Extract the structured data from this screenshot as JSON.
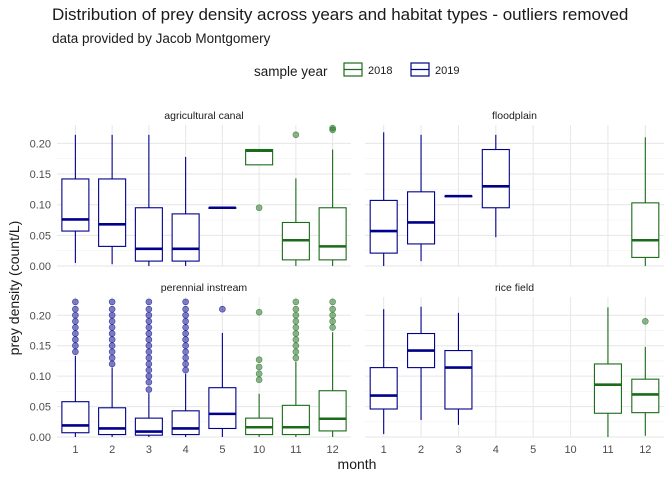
{
  "chart_data": {
    "type": "boxplot",
    "title": "Distribution of prey density across years and habitat types - outliers removed",
    "subtitle": "data provided by Jacob Montgomery",
    "xlabel": "month",
    "ylabel": "prey density (count/L)",
    "ylim": [
      0,
      0.23
    ],
    "yticks": [
      0.0,
      0.05,
      0.1,
      0.15,
      0.2
    ],
    "ytick_labels": [
      "0.00",
      "0.05",
      "0.10",
      "0.15",
      "0.20"
    ],
    "categories": [
      "1",
      "2",
      "3",
      "4",
      "5",
      "10",
      "11",
      "12"
    ],
    "grid": true,
    "legend": {
      "title": "sample year",
      "position": "top",
      "entries": [
        {
          "label": "2018",
          "color": "#1a6b1a"
        },
        {
          "label": "2019",
          "color": "#00008b"
        }
      ]
    },
    "panels": [
      {
        "name": "agricultural canal",
        "boxes": [
          {
            "month": "1",
            "year": "2019",
            "min": 0.005,
            "q1": 0.057,
            "median": 0.076,
            "q3": 0.142,
            "max": 0.214,
            "outliers": []
          },
          {
            "month": "2",
            "year": "2019",
            "min": 0.003,
            "q1": 0.032,
            "median": 0.068,
            "q3": 0.142,
            "max": 0.214,
            "outliers": []
          },
          {
            "month": "3",
            "year": "2019",
            "min": 0.0,
            "q1": 0.008,
            "median": 0.028,
            "q3": 0.095,
            "max": 0.214,
            "outliers": []
          },
          {
            "month": "4",
            "year": "2019",
            "min": 0.0,
            "q1": 0.008,
            "median": 0.028,
            "q3": 0.085,
            "max": 0.178,
            "outliers": []
          },
          {
            "month": "5",
            "year": "2019",
            "min": 0.095,
            "q1": 0.095,
            "median": 0.095,
            "q3": 0.095,
            "max": 0.095,
            "outliers": []
          },
          {
            "month": "10",
            "year": "2018",
            "min": 0.165,
            "q1": 0.165,
            "median": 0.188,
            "q3": 0.19,
            "max": 0.19,
            "outliers": [
              0.095
            ]
          },
          {
            "month": "11",
            "year": "2018",
            "min": 0.0,
            "q1": 0.01,
            "median": 0.042,
            "q3": 0.071,
            "max": 0.143,
            "outliers": [
              0.214
            ]
          },
          {
            "month": "12",
            "year": "2018",
            "min": 0.0,
            "q1": 0.01,
            "median": 0.032,
            "q3": 0.095,
            "max": 0.19,
            "outliers": [
              0.222,
              0.225
            ]
          }
        ]
      },
      {
        "name": "floodplain",
        "boxes": [
          {
            "month": "1",
            "year": "2019",
            "min": 0.0,
            "q1": 0.021,
            "median": 0.057,
            "q3": 0.107,
            "max": 0.218,
            "outliers": []
          },
          {
            "month": "2",
            "year": "2019",
            "min": 0.008,
            "q1": 0.036,
            "median": 0.071,
            "q3": 0.121,
            "max": 0.214,
            "outliers": []
          },
          {
            "month": "3",
            "year": "2019",
            "min": 0.114,
            "q1": 0.114,
            "median": 0.114,
            "q3": 0.114,
            "max": 0.114,
            "outliers": []
          },
          {
            "month": "4",
            "year": "2019",
            "min": 0.047,
            "q1": 0.095,
            "median": 0.13,
            "q3": 0.19,
            "max": 0.214,
            "outliers": []
          },
          {
            "month": "12",
            "year": "2018",
            "min": 0.0,
            "q1": 0.014,
            "median": 0.042,
            "q3": 0.103,
            "max": 0.21,
            "outliers": []
          }
        ]
      },
      {
        "name": "perennial instream",
        "boxes": [
          {
            "month": "1",
            "year": "2019",
            "min": 0.0,
            "q1": 0.007,
            "median": 0.019,
            "q3": 0.058,
            "max": 0.133,
            "outliers": [
              0.14,
              0.15,
              0.16,
              0.17,
              0.18,
              0.19,
              0.2,
              0.21,
              0.222
            ]
          },
          {
            "month": "2",
            "year": "2019",
            "min": 0.0,
            "q1": 0.004,
            "median": 0.014,
            "q3": 0.048,
            "max": 0.114,
            "outliers": [
              0.12,
              0.13,
              0.14,
              0.15,
              0.16,
              0.17,
              0.18,
              0.19,
              0.2,
              0.21,
              0.222
            ]
          },
          {
            "month": "3",
            "year": "2019",
            "min": 0.0,
            "q1": 0.003,
            "median": 0.009,
            "q3": 0.031,
            "max": 0.072,
            "outliers": [
              0.078,
              0.09,
              0.1,
              0.11,
              0.12,
              0.13,
              0.14,
              0.15,
              0.16,
              0.17,
              0.18,
              0.19,
              0.2,
              0.21,
              0.222
            ]
          },
          {
            "month": "4",
            "year": "2019",
            "min": 0.0,
            "q1": 0.004,
            "median": 0.014,
            "q3": 0.043,
            "max": 0.104,
            "outliers": [
              0.11,
              0.12,
              0.13,
              0.14,
              0.15,
              0.16,
              0.17,
              0.18,
              0.19,
              0.2,
              0.21,
              0.222
            ]
          },
          {
            "month": "5",
            "year": "2019",
            "min": 0.0,
            "q1": 0.014,
            "median": 0.038,
            "q3": 0.081,
            "max": 0.171,
            "outliers": [
              0.21
            ]
          },
          {
            "month": "10",
            "year": "2018",
            "min": 0.0,
            "q1": 0.004,
            "median": 0.016,
            "q3": 0.031,
            "max": 0.071,
            "outliers": [
              0.094,
              0.104,
              0.115,
              0.127,
              0.205
            ]
          },
          {
            "month": "11",
            "year": "2018",
            "min": 0.0,
            "q1": 0.004,
            "median": 0.016,
            "q3": 0.052,
            "max": 0.124,
            "outliers": [
              0.13,
              0.14,
              0.15,
              0.16,
              0.17,
              0.18,
              0.19,
              0.2,
              0.21,
              0.222
            ]
          },
          {
            "month": "12",
            "year": "2018",
            "min": 0.0,
            "q1": 0.01,
            "median": 0.03,
            "q3": 0.076,
            "max": 0.172,
            "outliers": [
              0.18,
              0.19,
              0.2,
              0.21,
              0.222
            ]
          }
        ]
      },
      {
        "name": "rice field",
        "boxes": [
          {
            "month": "1",
            "year": "2019",
            "min": 0.005,
            "q1": 0.046,
            "median": 0.068,
            "q3": 0.114,
            "max": 0.21,
            "outliers": []
          },
          {
            "month": "2",
            "year": "2019",
            "min": 0.028,
            "q1": 0.114,
            "median": 0.142,
            "q3": 0.17,
            "max": 0.214,
            "outliers": []
          },
          {
            "month": "3",
            "year": "2019",
            "min": 0.02,
            "q1": 0.046,
            "median": 0.114,
            "q3": 0.142,
            "max": 0.204,
            "outliers": []
          },
          {
            "month": "11",
            "year": "2018",
            "min": 0.0,
            "q1": 0.039,
            "median": 0.086,
            "q3": 0.12,
            "max": 0.213,
            "outliers": []
          },
          {
            "month": "12",
            "year": "2018",
            "min": 0.002,
            "q1": 0.04,
            "median": 0.07,
            "q3": 0.095,
            "max": 0.148,
            "outliers": [
              0.19
            ]
          }
        ]
      }
    ]
  }
}
